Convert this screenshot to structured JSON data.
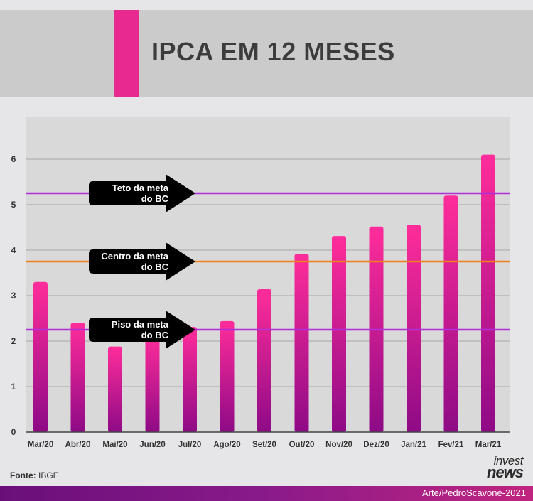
{
  "header": {
    "title": "IPCA EM 12 MESES"
  },
  "chart_data": {
    "type": "bar",
    "categories": [
      "Mar/20",
      "Abr/20",
      "Mai/20",
      "Jun/20",
      "Jul/20",
      "Ago/20",
      "Set/20",
      "Out/20",
      "Nov/20",
      "Dez/20",
      "Jan/21",
      "Fev/21",
      "Mar/21"
    ],
    "values": [
      3.3,
      2.4,
      1.88,
      2.13,
      2.31,
      2.44,
      3.14,
      3.92,
      4.31,
      4.52,
      4.56,
      5.2,
      6.1
    ],
    "ylim": [
      0,
      7
    ],
    "yticks": [
      0,
      1,
      2,
      3,
      4,
      5,
      6
    ],
    "grid": true,
    "reference_lines": [
      {
        "label": "Teto da meta\ndo BC",
        "value": 5.25,
        "color": "#b02fd6"
      },
      {
        "label": "Centro da meta\ndo BC",
        "value": 3.75,
        "color": "#f07f1e"
      },
      {
        "label": "Piso da meta\ndo BC",
        "value": 2.25,
        "color": "#b02fd6"
      }
    ],
    "bar_gradient": [
      "#ff2d9a",
      "#8e0a86"
    ]
  },
  "source": {
    "label": "Fonte:",
    "value": "IBGE"
  },
  "logo": {
    "line1": "invest",
    "line2": "news"
  },
  "footer": {
    "credit": "Arte/PedroScavone-2021"
  }
}
